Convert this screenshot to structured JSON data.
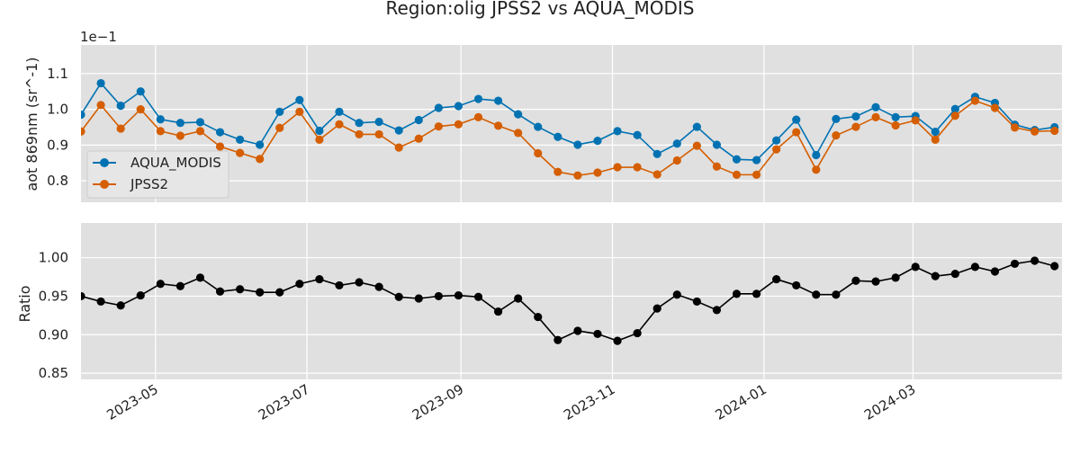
{
  "chart_data": [
    {
      "type": "line",
      "title": "Region:olig JPSS2 vs AQUA_MODIS",
      "ylabel": "aot 869nm (sr^-1)",
      "offset_label": "1e−1",
      "yticks": [
        "0.8",
        "0.9",
        "1.0",
        "1.1"
      ],
      "ytick_values": [
        0.8,
        0.9,
        1.0,
        1.1
      ],
      "ylim": [
        0.74,
        1.18
      ],
      "xlim": [
        "2023-04-01",
        "2024-04-30"
      ],
      "grid": true,
      "legend_position": "lower-left",
      "x": [
        "2023-04-01",
        "2023-04-09",
        "2023-04-17",
        "2023-04-25",
        "2023-05-03",
        "2023-05-11",
        "2023-05-19",
        "2023-05-27",
        "2023-06-04",
        "2023-06-12",
        "2023-06-20",
        "2023-06-28",
        "2023-07-06",
        "2023-07-14",
        "2023-07-22",
        "2023-07-30",
        "2023-08-07",
        "2023-08-15",
        "2023-08-23",
        "2023-08-31",
        "2023-09-08",
        "2023-09-16",
        "2023-09-24",
        "2023-10-02",
        "2023-10-10",
        "2023-10-18",
        "2023-10-26",
        "2023-11-03",
        "2023-11-11",
        "2023-11-19",
        "2023-11-27",
        "2023-12-05",
        "2023-12-13",
        "2023-12-21",
        "2023-12-29",
        "2024-01-06",
        "2024-01-14",
        "2024-01-22",
        "2024-01-30",
        "2024-02-07",
        "2024-02-15",
        "2024-02-23",
        "2024-03-02",
        "2024-03-10",
        "2024-03-18",
        "2024-03-26",
        "2024-04-03",
        "2024-04-11",
        "2024-04-19",
        "2024-04-27"
      ],
      "series": [
        {
          "name": "AQUA_MODIS",
          "color": "#0072b2",
          "values": [
            0.985,
            1.073,
            1.01,
            1.05,
            0.972,
            0.962,
            0.964,
            0.936,
            0.915,
            0.901,
            0.993,
            1.026,
            0.94,
            0.993,
            0.962,
            0.965,
            0.941,
            0.97,
            1.004,
            1.009,
            1.029,
            1.024,
            0.986,
            0.951,
            0.923,
            0.901,
            0.912,
            0.939,
            0.928,
            0.875,
            0.904,
            0.951,
            0.901,
            0.86,
            0.858,
            0.913,
            0.971,
            0.872,
            0.973,
            0.98,
            1.006,
            0.978,
            0.981,
            0.937,
            1.001,
            1.035,
            1.018,
            0.957,
            0.942,
            0.95
          ]
        },
        {
          "name": "JPSS2",
          "color": "#d55e00",
          "values": [
            0.938,
            1.012,
            0.946,
            1.0,
            0.939,
            0.926,
            0.939,
            0.896,
            0.878,
            0.861,
            0.948,
            0.993,
            0.915,
            0.958,
            0.93,
            0.93,
            0.893,
            0.918,
            0.952,
            0.958,
            0.978,
            0.954,
            0.934,
            0.877,
            0.825,
            0.815,
            0.823,
            0.838,
            0.838,
            0.818,
            0.857,
            0.898,
            0.84,
            0.817,
            0.817,
            0.888,
            0.936,
            0.831,
            0.927,
            0.951,
            0.978,
            0.955,
            0.969,
            0.915,
            0.982,
            1.024,
            1.004,
            0.949,
            0.938,
            0.94
          ]
        }
      ]
    },
    {
      "type": "line",
      "ylabel": "Ratio",
      "yticks": [
        "0.85",
        "0.90",
        "0.95",
        "1.00"
      ],
      "ytick_values": [
        0.85,
        0.9,
        0.95,
        1.0
      ],
      "ylim": [
        0.842,
        1.045
      ],
      "xlim": [
        "2023-04-01",
        "2024-04-30"
      ],
      "xticks": [
        "2023-05",
        "2023-07",
        "2023-09",
        "2023-11",
        "2024-01",
        "2024-03"
      ],
      "xtick_dates": [
        "2023-05-01",
        "2023-07-01",
        "2023-09-01",
        "2023-11-01",
        "2024-01-01",
        "2024-03-01"
      ],
      "grid": true,
      "x": [
        "2023-04-01",
        "2023-04-09",
        "2023-04-17",
        "2023-04-25",
        "2023-05-03",
        "2023-05-11",
        "2023-05-19",
        "2023-05-27",
        "2023-06-04",
        "2023-06-12",
        "2023-06-20",
        "2023-06-28",
        "2023-07-06",
        "2023-07-14",
        "2023-07-22",
        "2023-07-30",
        "2023-08-07",
        "2023-08-15",
        "2023-08-23",
        "2023-08-31",
        "2023-09-08",
        "2023-09-16",
        "2023-09-24",
        "2023-10-02",
        "2023-10-10",
        "2023-10-18",
        "2023-10-26",
        "2023-11-03",
        "2023-11-11",
        "2023-11-19",
        "2023-11-27",
        "2023-12-05",
        "2023-12-13",
        "2023-12-21",
        "2023-12-29",
        "2024-01-06",
        "2024-01-14",
        "2024-01-22",
        "2024-01-30",
        "2024-02-07",
        "2024-02-15",
        "2024-02-23",
        "2024-03-02",
        "2024-03-10",
        "2024-03-18",
        "2024-03-26",
        "2024-04-03",
        "2024-04-11",
        "2024-04-19",
        "2024-04-27"
      ],
      "series": [
        {
          "color": "#000000",
          "values": [
            0.95,
            0.943,
            0.938,
            0.951,
            0.966,
            0.963,
            0.974,
            0.956,
            0.959,
            0.955,
            0.955,
            0.966,
            0.972,
            0.964,
            0.968,
            0.962,
            0.949,
            0.947,
            0.95,
            0.951,
            0.949,
            0.93,
            0.947,
            0.923,
            0.893,
            0.905,
            0.901,
            0.892,
            0.902,
            0.934,
            0.952,
            0.943,
            0.932,
            0.953,
            0.953,
            0.972,
            0.964,
            0.952,
            0.952,
            0.97,
            0.969,
            0.974,
            0.988,
            0.976,
            0.979,
            0.988,
            0.982,
            0.992,
            0.996,
            0.989
          ]
        }
      ]
    }
  ]
}
